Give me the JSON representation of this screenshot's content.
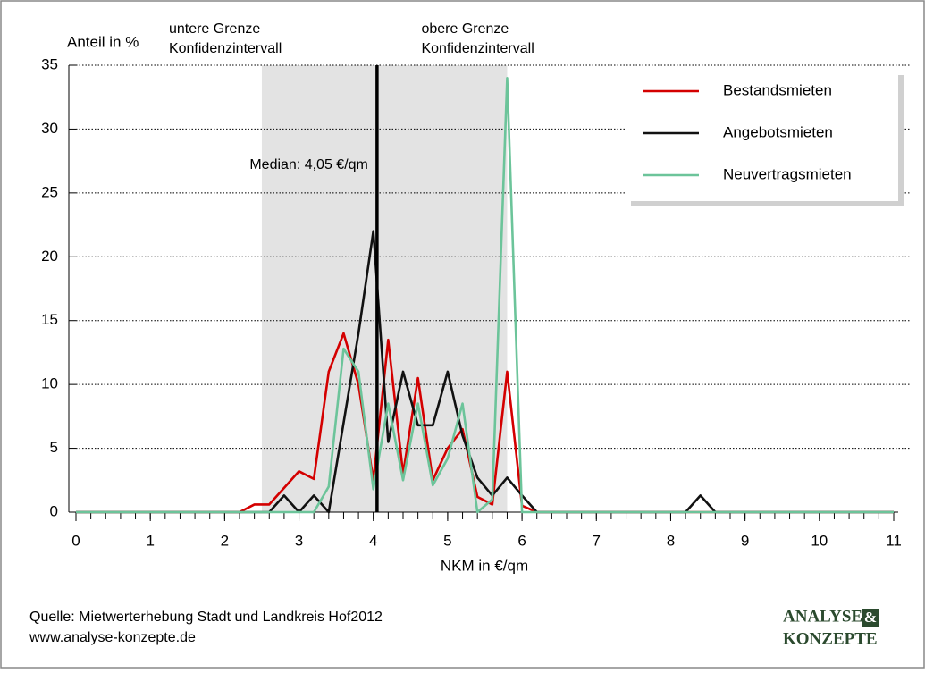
{
  "chart_data": {
    "type": "line",
    "y_label": "Anteil in %",
    "x_label": "NKM in €/qm",
    "x": [
      0,
      0.2,
      0.4,
      0.6,
      0.8,
      1,
      1.2,
      1.4,
      1.6,
      1.8,
      2,
      2.2,
      2.4,
      2.6,
      2.8,
      3,
      3.2,
      3.4,
      3.6,
      3.8,
      4,
      4.2,
      4.4,
      4.6,
      4.8,
      5,
      5.2,
      5.4,
      5.6,
      5.8,
      6,
      6.2,
      6.4,
      6.6,
      6.8,
      7,
      7.2,
      7.4,
      7.6,
      7.8,
      8,
      8.2,
      8.4,
      8.6,
      8.8,
      9,
      9.2,
      9.4,
      9.6,
      9.8,
      10,
      10.2,
      10.4,
      10.6,
      10.8,
      11
    ],
    "series": [
      {
        "name": "Bestandsmieten",
        "color": "#d40000",
        "values": [
          0,
          0,
          0,
          0,
          0,
          0,
          0,
          0,
          0,
          0,
          0,
          0,
          0.6,
          0.6,
          1.9,
          3.2,
          2.6,
          11,
          14,
          10,
          2.5,
          13.5,
          3,
          10.5,
          2.5,
          5,
          6.5,
          1.2,
          0.6,
          11,
          0.5,
          0,
          0,
          0,
          0,
          0,
          0,
          0,
          0,
          0,
          0,
          0,
          0,
          0,
          0,
          0,
          0,
          0,
          0,
          0,
          0,
          0,
          0,
          0,
          0,
          0
        ]
      },
      {
        "name": "Angebotsmieten",
        "color": "#111111",
        "values": [
          0,
          0,
          0,
          0,
          0,
          0,
          0,
          0,
          0,
          0,
          0,
          0,
          0,
          0,
          1.3,
          0,
          1.3,
          0,
          7,
          14,
          22,
          5.5,
          11,
          6.8,
          6.8,
          11,
          6,
          2.7,
          1.3,
          2.7,
          1.3,
          0,
          0,
          0,
          0,
          0,
          0,
          0,
          0,
          0,
          0,
          0,
          1.3,
          0,
          0,
          0,
          0,
          0,
          0,
          0,
          0,
          0,
          0,
          0,
          0,
          0
        ]
      },
      {
        "name": "Neuvertragsmieten",
        "color": "#6cc49a",
        "values": [
          0,
          0,
          0,
          0,
          0,
          0,
          0,
          0,
          0,
          0,
          0,
          0,
          0,
          0,
          0,
          0,
          0,
          2,
          12.8,
          11,
          1.8,
          8.5,
          2.5,
          8.5,
          2.1,
          4.2,
          8.5,
          0,
          1,
          34,
          0,
          0,
          0,
          0,
          0,
          0,
          0,
          0,
          0,
          0,
          0,
          0,
          0,
          0,
          0,
          0,
          0,
          0,
          0,
          0,
          0,
          0,
          0,
          0,
          0,
          0
        ]
      }
    ],
    "xlim": [
      0,
      11
    ],
    "xticks": [
      0,
      1,
      2,
      3,
      4,
      5,
      6,
      7,
      8,
      9,
      10,
      11
    ],
    "ylim": [
      0,
      35
    ],
    "yticks": [
      0,
      5,
      10,
      15,
      20,
      25,
      30,
      35
    ],
    "grid": true,
    "legend": "upper right",
    "band": {
      "x": [
        2.5,
        5.8
      ],
      "lower_label": [
        "untere Grenze",
        "Konfidenzintervall"
      ],
      "upper_label": [
        "obere Grenze",
        "Konfidenzintervall"
      ]
    },
    "median": {
      "x": 4.05,
      "label": "Median: 4,05 €/qm"
    }
  },
  "footer": {
    "source": "Quelle: Mietwerterhebung Stadt und Landkreis Hof2012",
    "url": "www.analyse-konzepte.de",
    "logo": [
      "ANALYSE",
      "&",
      "KONZEPTE"
    ]
  }
}
